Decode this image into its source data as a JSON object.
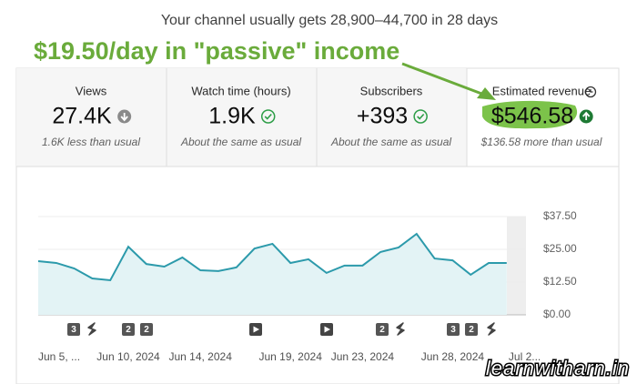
{
  "header": {
    "text": "Your channel usually gets 28,900–44,700 in 28 days"
  },
  "annotation": "$19.50/day in \"passive\" income",
  "cards": [
    {
      "label": "Views",
      "value": "27.4K",
      "note": "1.6K less than usual"
    },
    {
      "label": "Watch time (hours)",
      "value": "1.9K",
      "note": "About the same as usual"
    },
    {
      "label": "Subscribers",
      "value": "+393",
      "note": "About the same as usual"
    },
    {
      "label": "Estimated revenue",
      "value": "$546.58",
      "note": "$136.58 more than usual"
    }
  ],
  "chart_data": {
    "type": "line",
    "categories": [
      "Jun 5, ...",
      null,
      null,
      null,
      null,
      "Jun 10, 2024",
      null,
      null,
      null,
      "Jun 14, 2024",
      null,
      null,
      null,
      null,
      "Jun 19, 2024",
      null,
      null,
      null,
      "Jun 23, 2024",
      null,
      null,
      null,
      null,
      "Jun 28, 2024",
      null,
      null,
      null,
      "Jul 2..."
    ],
    "values": [
      20.5,
      19.8,
      17.7,
      13.9,
      13.2,
      26.0,
      19.4,
      18.4,
      21.9,
      17.0,
      16.7,
      18.1,
      25.3,
      27.1,
      19.8,
      21.2,
      16.0,
      18.8,
      18.8,
      24.0,
      25.7,
      30.9,
      21.5,
      20.8,
      15.3,
      19.8,
      19.8,
      null
    ],
    "color": "#2c9aab",
    "ylim": [
      0,
      37.5
    ],
    "yticks": [
      {
        "value": 0,
        "label": "$0.00"
      },
      {
        "value": 12.5,
        "label": "$12.50"
      },
      {
        "value": 25,
        "label": "$25.00"
      },
      {
        "value": 37.5,
        "label": "$37.50"
      }
    ],
    "grid": true,
    "markers": [
      "3",
      "2",
      "2",
      "2",
      "3",
      "2"
    ]
  },
  "watermark": "learnwitharn.in"
}
